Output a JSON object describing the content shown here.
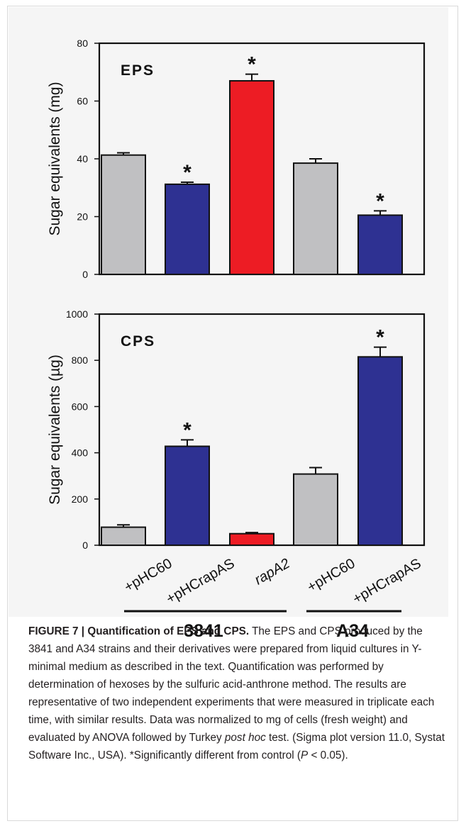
{
  "chart_data": [
    {
      "type": "bar",
      "panel_label": "EPS",
      "ylabel": "Sugar equivalents (mg)",
      "ylim": [
        0,
        80
      ],
      "yticks": [
        "0",
        "20",
        "40",
        "60",
        "80"
      ],
      "categories": [
        "+pHC60",
        "+pHCrapAS",
        "rapA2",
        "+pHC60",
        "+pHCrapAS"
      ],
      "values": [
        41.3,
        31.2,
        67.0,
        38.5,
        20.5
      ],
      "errors": [
        0.8,
        0.7,
        2.3,
        1.5,
        1.5
      ],
      "significant": [
        "",
        "*",
        "*",
        "",
        "*"
      ],
      "colors": [
        "#c0c0c2",
        "#2e3192",
        "#ed1c24",
        "#c0c0c2",
        "#2e3192"
      ]
    },
    {
      "type": "bar",
      "panel_label": "CPS",
      "ylabel": "Sugar equivalents (µg)",
      "ylim": [
        0,
        1000
      ],
      "yticks": [
        "0",
        "200",
        "400",
        "600",
        "800",
        "1000"
      ],
      "categories": [
        "+pHC60",
        "+pHCrapAS",
        "rapA2",
        "+pHC60",
        "+pHCrapAS"
      ],
      "values": [
        78,
        428,
        50,
        308,
        815
      ],
      "errors": [
        10,
        28,
        5,
        28,
        42
      ],
      "significant": [
        "",
        "*",
        "",
        "",
        "*"
      ],
      "colors": [
        "#c0c0c2",
        "#2e3192",
        "#ed1c24",
        "#c0c0c2",
        "#2e3192"
      ]
    }
  ],
  "group_labels": [
    "3841",
    "A34"
  ],
  "caption": {
    "figure_label": "FIGURE 7 | Quantification of EPS and CPS.",
    "text_1": " The EPS and CPS produced by the 3841 and A34 strains and their derivatives were prepared from liquid cultures in Y-minimal medium as described in the text. Quantification was performed by determination of hexoses by the sulfuric acid-anthrone method. The results are representative of two independent experiments that were measured in triplicate each time, with similar results. Data was normalized to mg of cells (fresh weight) and evaluated by ANOVA followed by Turkey ",
    "italic_1": "post hoc",
    "text_2": " test. (Sigma plot version 11.0, Systat Software Inc., USA). *Significantly different from control (",
    "italic_2": "P",
    "text_3": " < 0.05)."
  }
}
